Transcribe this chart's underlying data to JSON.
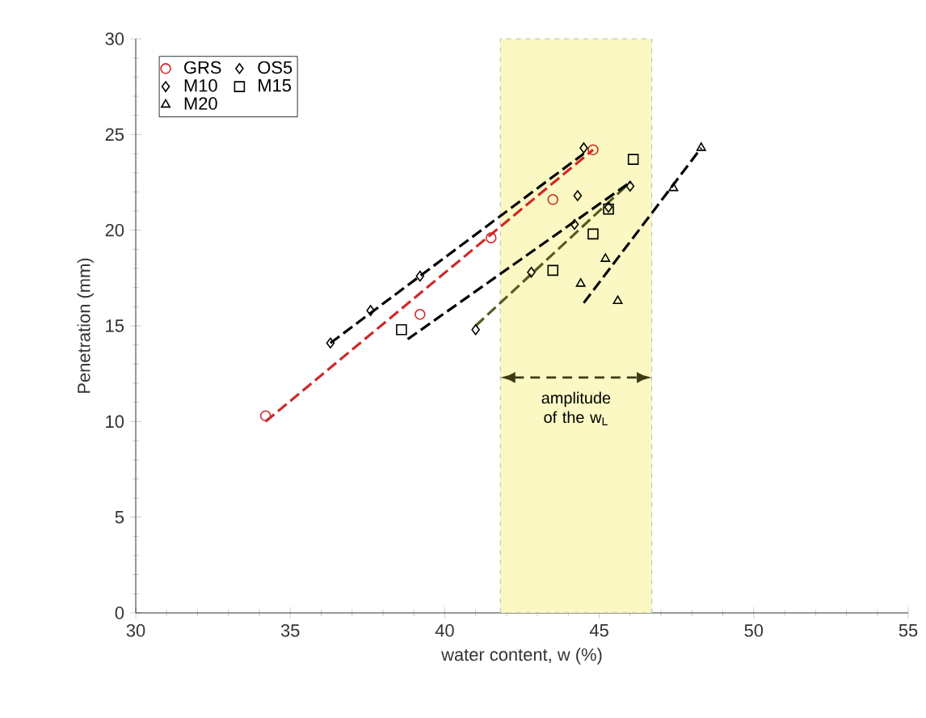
{
  "chart_data": {
    "type": "scatter",
    "xlabel": "water content, w (%)",
    "ylabel": "Penetration (mm)",
    "xlim": [
      30,
      55
    ],
    "ylim": [
      0,
      30
    ],
    "xticks": [
      30,
      35,
      40,
      45,
      50,
      55
    ],
    "yticks": [
      0,
      5,
      10,
      15,
      20,
      25,
      30
    ],
    "grid": false,
    "legend": "top left",
    "bands": [
      {
        "axis": "x",
        "from": 41.8,
        "to": 46.7,
        "label": "amplitude of the w$_{L}$",
        "color": "#fbf8c4"
      }
    ],
    "series": [
      {
        "type": "line",
        "color": "#d02828",
        "line_style": "dashed",
        "marker": "none",
        "x": [
          34.2,
          44.8
        ],
        "values": [
          10.0,
          24.2
        ]
      },
      {
        "type": "line",
        "color": "#000000",
        "line_style": "dashed",
        "marker": "none",
        "x": [
          36.3,
          44.5
        ],
        "values": [
          14.1,
          24.0
        ]
      },
      {
        "type": "line",
        "color": "#5a5a20",
        "line_style": "dashed",
        "marker": "none",
        "x": [
          41.0,
          46.0
        ],
        "values": [
          15.0,
          22.5
        ]
      },
      {
        "type": "line",
        "color": "#000000",
        "line_style": "dashed",
        "marker": "none",
        "x": [
          38.8,
          46.0
        ],
        "values": [
          14.3,
          22.5
        ]
      },
      {
        "type": "line",
        "color": "#000000",
        "line_style": "dashed",
        "marker": "none",
        "x": [
          44.5,
          48.3
        ],
        "values": [
          16.2,
          24.3
        ]
      },
      {
        "name": "GRS",
        "color": "#d02828",
        "marker": "circle",
        "x": [
          34.2,
          39.2,
          41.5,
          43.5,
          44.8
        ],
        "values": [
          10.3,
          15.6,
          19.6,
          21.6,
          24.2
        ]
      },
      {
        "name": "OS5",
        "color": "#000000",
        "marker": "diamond",
        "x": [
          36.3,
          37.6,
          39.2,
          44.3,
          44.5
        ],
        "values": [
          14.1,
          15.8,
          17.6,
          21.8,
          24.3
        ]
      },
      {
        "name": "M10",
        "color": "#000000",
        "marker": "diamond",
        "x": [
          41.0,
          42.8,
          44.2,
          45.3,
          46.0
        ],
        "values": [
          14.8,
          17.8,
          20.3,
          21.2,
          22.3
        ]
      },
      {
        "name": "M15",
        "color": "#000000",
        "marker": "square",
        "x": [
          38.6,
          43.5,
          44.8,
          45.3,
          46.1
        ],
        "values": [
          14.8,
          17.9,
          19.8,
          21.1,
          23.7
        ]
      },
      {
        "name": "M20",
        "color": "#000000",
        "marker": "triangle",
        "x": [
          44.4,
          45.2,
          45.6,
          47.4,
          48.3
        ],
        "values": [
          17.2,
          18.5,
          16.3,
          22.2,
          24.3
        ]
      }
    ]
  }
}
